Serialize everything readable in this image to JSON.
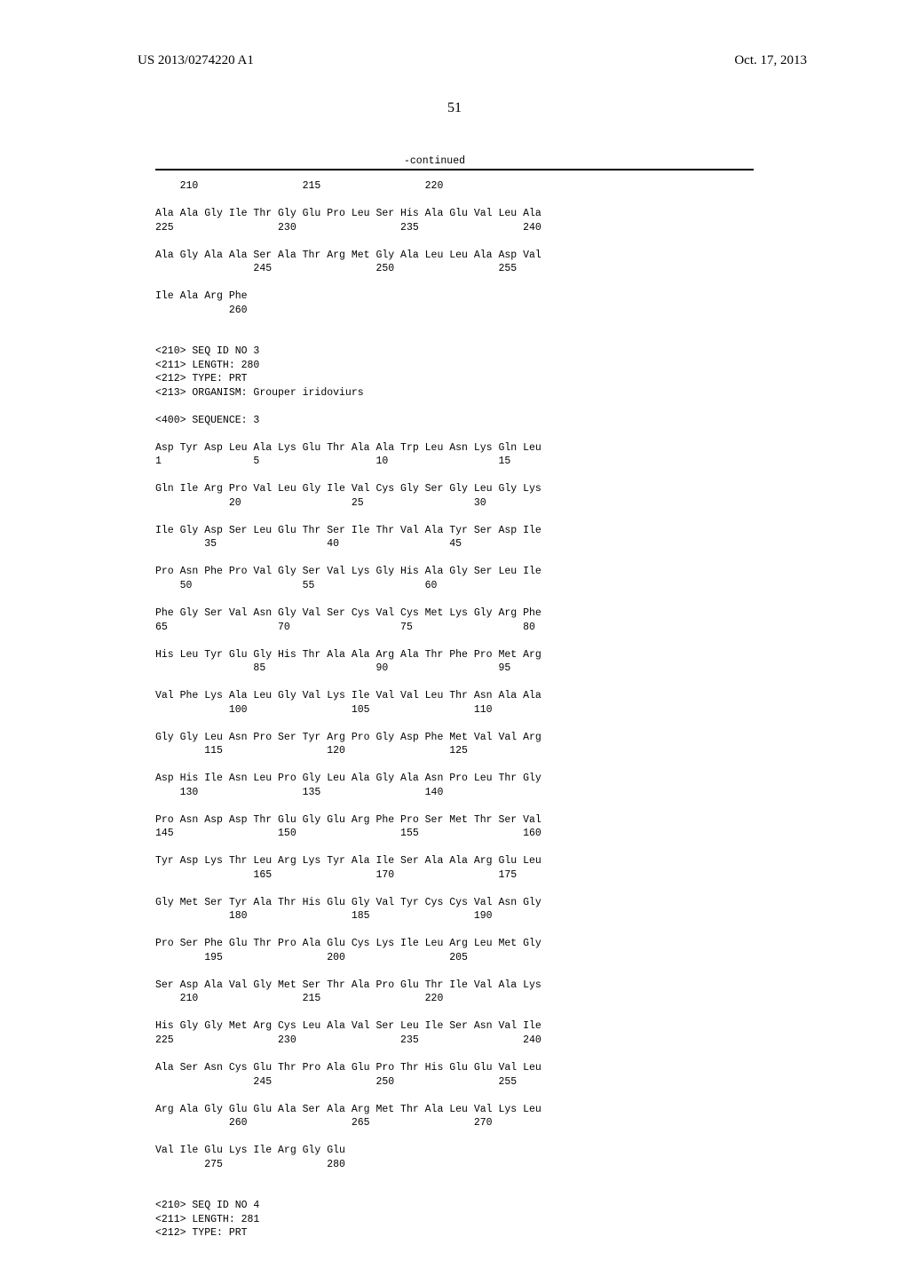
{
  "header": {
    "pub_number": "US 2013/0274220 A1",
    "date": "Oct. 17, 2013"
  },
  "page_number": "51",
  "continued_label": "-continued",
  "seq2_tail": [
    {
      "nums": "    210                 215                 220"
    },
    {
      "res": "Ala Ala Gly Ile Thr Gly Glu Pro Leu Ser His Ala Glu Val Leu Ala",
      "nums": "225                 230                 235                 240"
    },
    {
      "res": "Ala Gly Ala Ala Ser Ala Thr Arg Met Gly Ala Leu Leu Ala Asp Val",
      "nums": "                245                 250                 255"
    },
    {
      "res": "Ile Ala Arg Phe",
      "nums": "            260"
    }
  ],
  "seq3_header": {
    "l1": "<210> SEQ ID NO 3",
    "l2": "<211> LENGTH: 280",
    "l3": "<212> TYPE: PRT",
    "l4": "<213> ORGANISM: Grouper iridoviurs",
    "l5": "<400> SEQUENCE: 3"
  },
  "seq3": [
    {
      "res": "Asp Tyr Asp Leu Ala Lys Glu Thr Ala Ala Trp Leu Asn Lys Gln Leu",
      "nums": "1               5                   10                  15"
    },
    {
      "res": "Gln Ile Arg Pro Val Leu Gly Ile Val Cys Gly Ser Gly Leu Gly Lys",
      "nums": "            20                  25                  30"
    },
    {
      "res": "Ile Gly Asp Ser Leu Glu Thr Ser Ile Thr Val Ala Tyr Ser Asp Ile",
      "nums": "        35                  40                  45"
    },
    {
      "res": "Pro Asn Phe Pro Val Gly Ser Val Lys Gly His Ala Gly Ser Leu Ile",
      "nums": "    50                  55                  60"
    },
    {
      "res": "Phe Gly Ser Val Asn Gly Val Ser Cys Val Cys Met Lys Gly Arg Phe",
      "nums": "65                  70                  75                  80"
    },
    {
      "res": "His Leu Tyr Glu Gly His Thr Ala Ala Arg Ala Thr Phe Pro Met Arg",
      "nums": "                85                  90                  95"
    },
    {
      "res": "Val Phe Lys Ala Leu Gly Val Lys Ile Val Val Leu Thr Asn Ala Ala",
      "nums": "            100                 105                 110"
    },
    {
      "res": "Gly Gly Leu Asn Pro Ser Tyr Arg Pro Gly Asp Phe Met Val Val Arg",
      "nums": "        115                 120                 125"
    },
    {
      "res": "Asp His Ile Asn Leu Pro Gly Leu Ala Gly Ala Asn Pro Leu Thr Gly",
      "nums": "    130                 135                 140"
    },
    {
      "res": "Pro Asn Asp Asp Thr Glu Gly Glu Arg Phe Pro Ser Met Thr Ser Val",
      "nums": "145                 150                 155                 160"
    },
    {
      "res": "Tyr Asp Lys Thr Leu Arg Lys Tyr Ala Ile Ser Ala Ala Arg Glu Leu",
      "nums": "                165                 170                 175"
    },
    {
      "res": "Gly Met Ser Tyr Ala Thr His Glu Gly Val Tyr Cys Cys Val Asn Gly",
      "nums": "            180                 185                 190"
    },
    {
      "res": "Pro Ser Phe Glu Thr Pro Ala Glu Cys Lys Ile Leu Arg Leu Met Gly",
      "nums": "        195                 200                 205"
    },
    {
      "res": "Ser Asp Ala Val Gly Met Ser Thr Ala Pro Glu Thr Ile Val Ala Lys",
      "nums": "    210                 215                 220"
    },
    {
      "res": "His Gly Gly Met Arg Cys Leu Ala Val Ser Leu Ile Ser Asn Val Ile",
      "nums": "225                 230                 235                 240"
    },
    {
      "res": "Ala Ser Asn Cys Glu Thr Pro Ala Glu Pro Thr His Glu Glu Val Leu",
      "nums": "                245                 250                 255"
    },
    {
      "res": "Arg Ala Gly Glu Glu Ala Ser Ala Arg Met Thr Ala Leu Val Lys Leu",
      "nums": "            260                 265                 270"
    },
    {
      "res": "Val Ile Glu Lys Ile Arg Gly Glu",
      "nums": "        275                 280"
    }
  ],
  "seq4_header": {
    "l1": "<210> SEQ ID NO 4",
    "l2": "<211> LENGTH: 281",
    "l3": "<212> TYPE: PRT"
  }
}
